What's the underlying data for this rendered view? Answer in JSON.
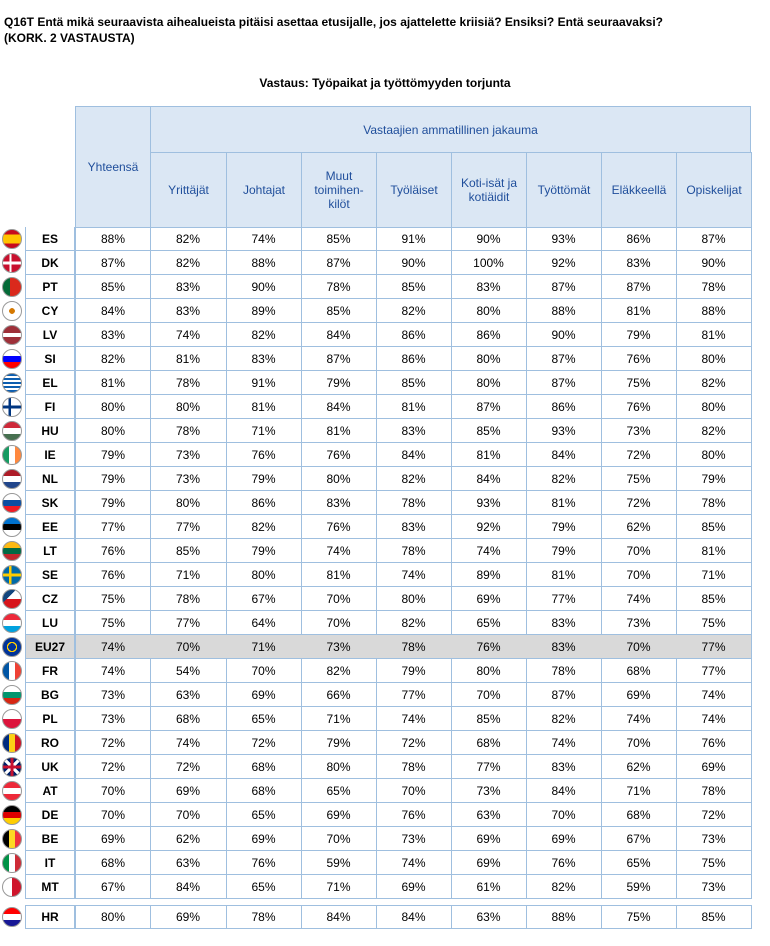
{
  "question": "Q16T Entä mikä seuraavista aihealueista pitäisi asettaa etusijalle, jos ajattelette kriisiä? Ensiksi? Entä seuraavaksi?",
  "question_note": "(KORK. 2 VASTAUSTA)",
  "subtitle": "Vastaus: Työpaikat ja työttömyyden torjunta",
  "header": {
    "total": "Yhteensä",
    "group": "Vastaajien ammatillinen jakauma",
    "columns": [
      "Yrittäjät",
      "Johtajat",
      "Muut toimihen-kilöt",
      "Työläiset",
      "Koti-isät ja kotiäidit",
      "Työttömät",
      "Eläkkeellä",
      "Opiskelijat"
    ]
  },
  "rows": [
    {
      "code": "ES",
      "values": [
        "88%",
        "82%",
        "74%",
        "85%",
        "91%",
        "90%",
        "93%",
        "86%",
        "87%"
      ]
    },
    {
      "code": "DK",
      "values": [
        "87%",
        "82%",
        "88%",
        "87%",
        "90%",
        "100%",
        "92%",
        "83%",
        "90%"
      ]
    },
    {
      "code": "PT",
      "values": [
        "85%",
        "83%",
        "90%",
        "78%",
        "85%",
        "83%",
        "87%",
        "87%",
        "78%"
      ]
    },
    {
      "code": "CY",
      "values": [
        "84%",
        "83%",
        "89%",
        "85%",
        "82%",
        "80%",
        "88%",
        "81%",
        "88%"
      ]
    },
    {
      "code": "LV",
      "values": [
        "83%",
        "74%",
        "82%",
        "84%",
        "86%",
        "86%",
        "90%",
        "79%",
        "81%"
      ]
    },
    {
      "code": "SI",
      "values": [
        "82%",
        "81%",
        "83%",
        "87%",
        "86%",
        "80%",
        "87%",
        "76%",
        "80%"
      ]
    },
    {
      "code": "EL",
      "values": [
        "81%",
        "78%",
        "91%",
        "79%",
        "85%",
        "80%",
        "87%",
        "75%",
        "82%"
      ]
    },
    {
      "code": "FI",
      "values": [
        "80%",
        "80%",
        "81%",
        "84%",
        "81%",
        "87%",
        "86%",
        "76%",
        "80%"
      ]
    },
    {
      "code": "HU",
      "values": [
        "80%",
        "78%",
        "71%",
        "81%",
        "83%",
        "85%",
        "93%",
        "73%",
        "82%"
      ]
    },
    {
      "code": "IE",
      "values": [
        "79%",
        "73%",
        "76%",
        "76%",
        "84%",
        "81%",
        "84%",
        "72%",
        "80%"
      ]
    },
    {
      "code": "NL",
      "values": [
        "79%",
        "73%",
        "79%",
        "80%",
        "82%",
        "84%",
        "82%",
        "75%",
        "79%"
      ]
    },
    {
      "code": "SK",
      "values": [
        "79%",
        "80%",
        "86%",
        "83%",
        "78%",
        "93%",
        "81%",
        "72%",
        "78%"
      ]
    },
    {
      "code": "EE",
      "values": [
        "77%",
        "77%",
        "82%",
        "76%",
        "83%",
        "92%",
        "79%",
        "62%",
        "85%"
      ]
    },
    {
      "code": "LT",
      "values": [
        "76%",
        "85%",
        "79%",
        "74%",
        "78%",
        "74%",
        "79%",
        "70%",
        "81%"
      ]
    },
    {
      "code": "SE",
      "values": [
        "76%",
        "71%",
        "80%",
        "81%",
        "74%",
        "89%",
        "81%",
        "70%",
        "71%"
      ]
    },
    {
      "code": "CZ",
      "values": [
        "75%",
        "78%",
        "67%",
        "70%",
        "80%",
        "69%",
        "77%",
        "74%",
        "85%"
      ]
    },
    {
      "code": "LU",
      "values": [
        "75%",
        "77%",
        "64%",
        "70%",
        "82%",
        "65%",
        "83%",
        "73%",
        "75%"
      ]
    },
    {
      "code": "EU27",
      "values": [
        "74%",
        "70%",
        "71%",
        "73%",
        "78%",
        "76%",
        "83%",
        "70%",
        "77%"
      ]
    },
    {
      "code": "FR",
      "values": [
        "74%",
        "54%",
        "70%",
        "82%",
        "79%",
        "80%",
        "78%",
        "68%",
        "77%"
      ]
    },
    {
      "code": "BG",
      "values": [
        "73%",
        "63%",
        "69%",
        "66%",
        "77%",
        "70%",
        "87%",
        "69%",
        "74%"
      ]
    },
    {
      "code": "PL",
      "values": [
        "73%",
        "68%",
        "65%",
        "71%",
        "74%",
        "85%",
        "82%",
        "74%",
        "74%"
      ]
    },
    {
      "code": "RO",
      "values": [
        "72%",
        "74%",
        "72%",
        "79%",
        "72%",
        "68%",
        "74%",
        "70%",
        "76%"
      ]
    },
    {
      "code": "UK",
      "values": [
        "72%",
        "72%",
        "68%",
        "80%",
        "78%",
        "77%",
        "83%",
        "62%",
        "69%"
      ]
    },
    {
      "code": "AT",
      "values": [
        "70%",
        "69%",
        "68%",
        "65%",
        "70%",
        "73%",
        "84%",
        "71%",
        "78%"
      ]
    },
    {
      "code": "DE",
      "values": [
        "70%",
        "70%",
        "65%",
        "69%",
        "76%",
        "63%",
        "70%",
        "68%",
        "72%"
      ]
    },
    {
      "code": "BE",
      "values": [
        "69%",
        "62%",
        "69%",
        "70%",
        "73%",
        "69%",
        "69%",
        "67%",
        "73%"
      ]
    },
    {
      "code": "IT",
      "values": [
        "68%",
        "63%",
        "76%",
        "59%",
        "74%",
        "69%",
        "76%",
        "65%",
        "75%"
      ]
    },
    {
      "code": "MT",
      "values": [
        "67%",
        "84%",
        "65%",
        "71%",
        "69%",
        "61%",
        "82%",
        "59%",
        "73%"
      ]
    }
  ],
  "extra_row": {
    "code": "HR",
    "values": [
      "80%",
      "69%",
      "78%",
      "84%",
      "84%",
      "63%",
      "88%",
      "75%",
      "85%"
    ]
  },
  "flag_icons": {
    "ES": "spain-flag-icon",
    "DK": "denmark-flag-icon",
    "PT": "portugal-flag-icon",
    "CY": "cyprus-flag-icon",
    "LV": "latvia-flag-icon",
    "SI": "slovenia-flag-icon",
    "EL": "greece-flag-icon",
    "FI": "finland-flag-icon",
    "HU": "hungary-flag-icon",
    "IE": "ireland-flag-icon",
    "NL": "netherlands-flag-icon",
    "SK": "slovakia-flag-icon",
    "EE": "estonia-flag-icon",
    "LT": "lithuania-flag-icon",
    "SE": "sweden-flag-icon",
    "CZ": "czechia-flag-icon",
    "LU": "luxembourg-flag-icon",
    "EU27": "eu-flag-icon",
    "FR": "france-flag-icon",
    "BG": "bulgaria-flag-icon",
    "PL": "poland-flag-icon",
    "RO": "romania-flag-icon",
    "UK": "uk-flag-icon",
    "AT": "austria-flag-icon",
    "DE": "germany-flag-icon",
    "BE": "belgium-flag-icon",
    "IT": "italy-flag-icon",
    "MT": "malta-flag-icon",
    "HR": "croatia-flag-icon"
  }
}
